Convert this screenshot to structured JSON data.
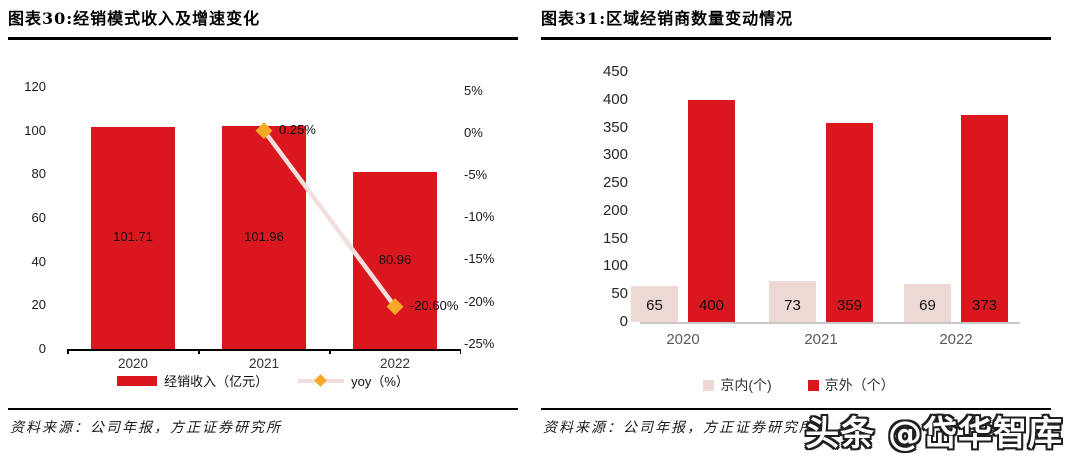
{
  "panels": [
    {
      "title": "图表30:经销模式收入及增速变化",
      "source": "资料来源：公司年报，方正证券研究所"
    },
    {
      "title": "图表31:区域经销商数量变动情况",
      "source": "资料来源：公司年报，方正证券研究所"
    }
  ],
  "watermark": {
    "text": "头条 @岱华智库"
  },
  "colors": {
    "bar_red": "#DA161E",
    "bar_pink": "#EDD8D3",
    "line_pink": "#F2DEDC",
    "marker_orange": "#F7A827"
  },
  "chart_data": [
    {
      "type": "bar+line",
      "title": "经销模式收入及增速变化",
      "categories": [
        "2020",
        "2021",
        "2022"
      ],
      "series": [
        {
          "name": "经销收入（亿元）",
          "type": "bar",
          "axis": "left",
          "values": [
            101.71,
            101.96,
            80.96
          ],
          "labels": [
            "101.71",
            "101.96",
            "80.96"
          ],
          "color": "#DA161E"
        },
        {
          "name": "yoy（%）",
          "type": "line",
          "axis": "right",
          "values": [
            null,
            0.25,
            -20.6
          ],
          "labels": [
            null,
            "0.25%",
            "-20.60%"
          ],
          "color": "#F2DEDC",
          "marker_color": "#F7A827"
        }
      ],
      "left_axis": {
        "min": 0,
        "max": 120,
        "step": 20,
        "ticks": [
          "120",
          "100",
          "80",
          "60",
          "40",
          "20",
          "0"
        ]
      },
      "right_axis": {
        "min": -25,
        "max": 5,
        "step": 5,
        "ticks": [
          "5%",
          "0%",
          "-5%",
          "-10%",
          "-15%",
          "-20%",
          "-25%"
        ]
      },
      "grid": false,
      "legend_position": "bottom"
    },
    {
      "type": "bar",
      "title": "区域经销商数量变动情况",
      "categories": [
        "2020",
        "2021",
        "2022"
      ],
      "series": [
        {
          "name": "京内(个)",
          "values": [
            65,
            73,
            69
          ],
          "labels": [
            "65",
            "73",
            "69"
          ],
          "color": "#EDD8D3"
        },
        {
          "name": "京外（个）",
          "values": [
            400,
            359,
            373
          ],
          "labels": [
            "400",
            "359",
            "373"
          ],
          "color": "#DA161E"
        }
      ],
      "y_axis": {
        "min": 0,
        "max": 450,
        "step": 50,
        "ticks": [
          "450",
          "400",
          "350",
          "300",
          "250",
          "200",
          "150",
          "100",
          "50",
          "0"
        ]
      },
      "grid": false,
      "legend_position": "bottom"
    }
  ]
}
